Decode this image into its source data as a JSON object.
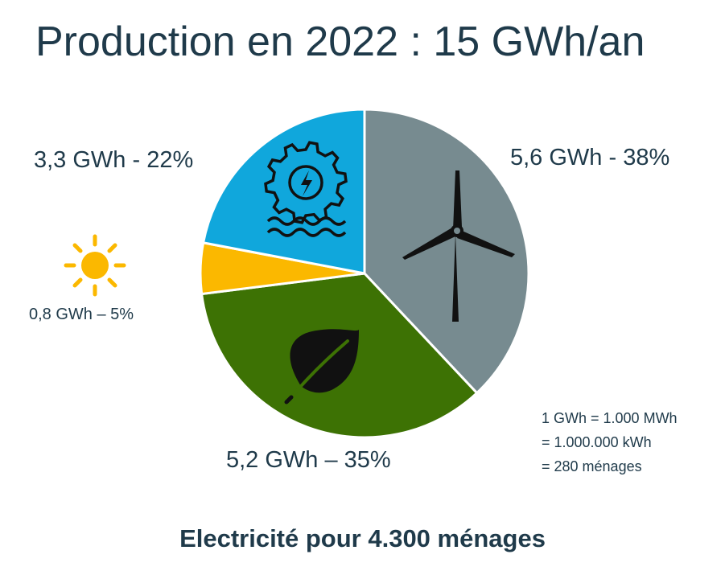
{
  "title": "Production en 2022 : 15 GWh/an",
  "chart_data": {
    "type": "pie",
    "title": "Production en 2022 : 15 GWh/an",
    "slices": [
      {
        "name": "wind",
        "value": 5.6,
        "percent": 38,
        "label": "5,6 GWh - 38%",
        "color": "#778b90",
        "icon": "wind-turbine-icon"
      },
      {
        "name": "biomass",
        "value": 5.2,
        "percent": 35,
        "label": "5,2 GWh – 35%",
        "color": "#3d7204",
        "icon": "leaf-icon"
      },
      {
        "name": "solar",
        "value": 0.8,
        "percent": 5,
        "label": "0,8 GWh – 5%",
        "color": "#fbb800",
        "icon": "sun-icon"
      },
      {
        "name": "hydro",
        "value": 3.3,
        "percent": 22,
        "label": "3,3 GWh - 22%",
        "color": "#10a7dc",
        "icon": "water-turbine-icon"
      }
    ]
  },
  "note": {
    "lines": [
      "1 GWh = 1.000 MWh",
      "= 1.000.000 kWh",
      "= 280 ménages"
    ]
  },
  "footer": "Electricité pour 4.300 ménages"
}
